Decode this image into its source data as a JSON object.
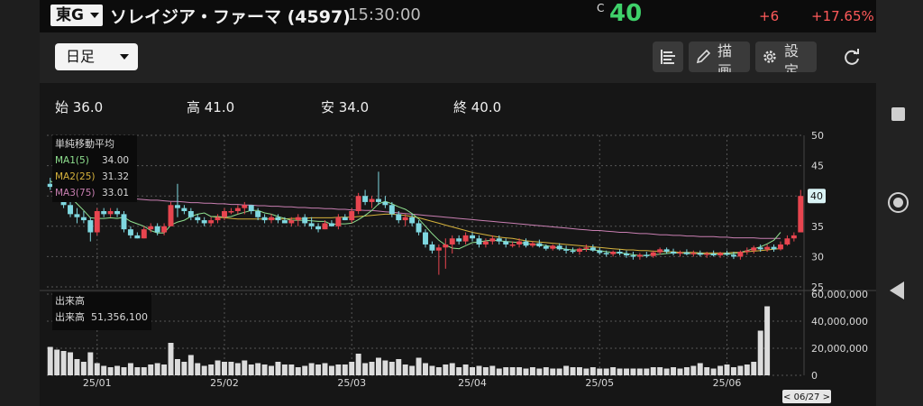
{
  "header": {
    "market": "東G",
    "stock_name": "ソレイジア・ファーマ (4597)",
    "time": "15:30:00",
    "price_marker": "C",
    "price": "40",
    "change": "+6",
    "change_pct": "+17.65%"
  },
  "toolbar": {
    "period": "日足",
    "draw_label": "描画",
    "settings_label": "設定"
  },
  "ohlc": {
    "open": "始 36.0",
    "high": "高 41.0",
    "low": "安 34.0",
    "close": "終 40.0"
  },
  "legend": {
    "title": "単純移動平均",
    "ma1_label": "MA1(5)",
    "ma1_value": "34.00",
    "ma2_label": "MA2(25)",
    "ma2_value": "31.32",
    "ma3_label": "MA3(75)",
    "ma3_value": "33.01"
  },
  "volume_legend": {
    "title": "出来高",
    "label": "出来高",
    "value": "51,356,100"
  },
  "colors": {
    "up": "#e8454f",
    "down": "#7fd8e0",
    "ma1": "#8fe08f",
    "ma2": "#d6b23c",
    "ma3": "#c97fb2",
    "price": "#3fd16a"
  },
  "icons": {
    "toolbar_1": "list-icon",
    "toolbar_2": "pencil-icon",
    "toolbar_3": "gear-icon",
    "toolbar_4": "refresh-icon"
  },
  "chart_data": {
    "type": "candlestick",
    "price_axis": {
      "ticks": [
        "50",
        "45",
        "40",
        "35",
        "30",
        "25"
      ],
      "ylim": [
        25,
        50
      ]
    },
    "volume_axis": {
      "ticks": [
        "60,000,000",
        "40,000,000",
        "20,000,000",
        "0"
      ],
      "ylim": [
        0,
        60000000
      ]
    },
    "x_labels": [
      "25/01",
      "25/02",
      "25/03",
      "25/04",
      "25/05",
      "25/06"
    ],
    "last_price_badge": "40",
    "cursor_date": "< 06/27 >",
    "x_tick_index": [
      7,
      26,
      45,
      63,
      82,
      101
    ],
    "candles": [
      [
        42,
        43,
        41,
        41.5
      ],
      [
        41.5,
        42,
        39.5,
        40
      ],
      [
        40,
        40.5,
        38,
        38.5
      ],
      [
        38.5,
        39,
        36.5,
        37
      ],
      [
        37,
        38,
        35.5,
        36.5
      ],
      [
        36.5,
        37.5,
        35.5,
        36
      ],
      [
        36,
        36.5,
        32.5,
        34
      ],
      [
        34,
        38,
        33.5,
        37.5
      ],
      [
        37.5,
        38,
        36.5,
        37
      ],
      [
        37,
        38,
        36.5,
        37.5
      ],
      [
        37.5,
        38,
        36.5,
        37
      ],
      [
        37,
        37.5,
        34,
        34.5
      ],
      [
        34.5,
        35,
        33,
        33.5
      ],
      [
        33.5,
        34,
        33,
        33
      ],
      [
        33,
        35,
        33,
        34.5
      ],
      [
        34.5,
        35.5,
        34,
        35
      ],
      [
        35,
        35.5,
        33.5,
        34
      ],
      [
        34,
        35.5,
        33.5,
        35
      ],
      [
        35,
        39,
        35,
        38.5
      ],
      [
        38.5,
        42,
        36.5,
        38
      ],
      [
        38,
        38.5,
        37,
        37.5
      ],
      [
        37.5,
        38,
        36,
        36.5
      ],
      [
        36.5,
        37,
        35.5,
        36
      ],
      [
        36,
        36.5,
        35,
        35.5
      ],
      [
        35.5,
        36.5,
        35,
        36
      ],
      [
        36,
        37,
        35.5,
        36.5
      ],
      [
        36.5,
        38,
        36,
        37.5
      ],
      [
        37.5,
        38,
        37,
        37.5
      ],
      [
        37.5,
        38.5,
        37,
        38
      ],
      [
        38,
        39,
        37,
        38.5
      ],
      [
        38.5,
        38.5,
        37,
        37.5
      ],
      [
        37.5,
        38,
        36,
        36.5
      ],
      [
        36.5,
        37,
        35.5,
        36
      ],
      [
        36,
        37,
        35.5,
        36.5
      ],
      [
        36.5,
        37,
        35.5,
        36
      ],
      [
        36,
        36.5,
        35.5,
        35.5
      ],
      [
        35.5,
        36.5,
        35,
        36
      ],
      [
        36,
        37,
        35,
        36.5
      ],
      [
        36.5,
        37,
        35,
        35.5
      ],
      [
        35.5,
        36.5,
        34.5,
        35
      ],
      [
        35,
        35.5,
        34,
        34.5
      ],
      [
        34.5,
        36,
        34.5,
        35.5
      ],
      [
        35.5,
        36,
        35,
        35
      ],
      [
        35,
        37,
        34.5,
        36.5
      ],
      [
        36.5,
        37,
        36,
        36
      ],
      [
        36,
        38,
        35.5,
        37.5
      ],
      [
        37.5,
        40.5,
        37,
        40
      ],
      [
        40,
        41,
        38.5,
        39
      ],
      [
        39,
        40,
        38,
        39.5
      ],
      [
        39.5,
        44,
        38.5,
        39
      ],
      [
        39,
        40,
        38,
        38.5
      ],
      [
        38.5,
        39,
        36.5,
        37
      ],
      [
        37,
        37.5,
        35.5,
        36
      ],
      [
        36,
        37,
        35,
        36.5
      ],
      [
        36.5,
        37,
        35,
        35.5
      ],
      [
        35.5,
        36,
        33.5,
        34
      ],
      [
        34,
        34.5,
        31.5,
        32
      ],
      [
        32,
        32.5,
        30.5,
        31
      ],
      [
        31,
        32,
        27,
        31.5
      ],
      [
        31.5,
        33,
        28,
        32
      ],
      [
        32,
        33.5,
        30.5,
        33
      ],
      [
        33,
        33.5,
        32,
        32.5
      ],
      [
        32.5,
        34,
        32,
        33.5
      ],
      [
        33.5,
        34,
        32.5,
        33
      ],
      [
        33,
        33.5,
        31.5,
        32
      ],
      [
        32,
        33,
        31.5,
        32.5
      ],
      [
        32.5,
        33.5,
        32,
        33
      ],
      [
        33,
        33.5,
        32,
        32.5
      ],
      [
        32.5,
        33,
        31.5,
        32
      ],
      [
        32,
        32.5,
        31.5,
        32
      ],
      [
        32,
        33,
        31.5,
        32.5
      ],
      [
        32.5,
        33,
        31.5,
        31.8
      ],
      [
        31.8,
        32.5,
        31.5,
        32.2
      ],
      [
        32.2,
        32.8,
        31.5,
        31.7
      ],
      [
        31.7,
        32,
        31,
        31.3
      ],
      [
        31.3,
        32,
        31,
        31.8
      ],
      [
        31.8,
        32.2,
        31,
        31.2
      ],
      [
        31.2,
        31.8,
        30.5,
        31
      ],
      [
        31,
        31.5,
        30.5,
        30.8
      ],
      [
        30.8,
        31.5,
        30.3,
        31.3
      ],
      [
        31.3,
        32,
        30.8,
        31.5
      ],
      [
        31.5,
        32,
        30.8,
        31
      ],
      [
        31,
        31.5,
        30.3,
        30.6
      ],
      [
        30.6,
        31,
        30,
        30.4
      ],
      [
        30.4,
        31,
        30,
        30.8
      ],
      [
        30.8,
        31.2,
        30.2,
        30.5
      ],
      [
        30.5,
        31,
        29.8,
        30.2
      ],
      [
        30.2,
        30.8,
        29.5,
        30
      ],
      [
        30,
        30.6,
        29.5,
        30.3
      ],
      [
        30.3,
        30.8,
        29.8,
        30.1
      ],
      [
        30.1,
        31,
        29.8,
        30.7
      ],
      [
        30.7,
        31.5,
        30.3,
        31.2
      ],
      [
        31.2,
        31.5,
        30.5,
        30.8
      ],
      [
        30.8,
        31.3,
        30.2,
        30.5
      ],
      [
        30.5,
        31,
        30,
        30.7
      ],
      [
        30.7,
        31.2,
        30.2,
        30.4
      ],
      [
        30.4,
        31,
        30,
        30.6
      ],
      [
        30.6,
        31,
        30,
        30.3
      ],
      [
        30.3,
        30.8,
        29.8,
        30.5
      ],
      [
        30.5,
        31,
        30,
        30.2
      ],
      [
        30.2,
        30.8,
        29.8,
        30.6
      ],
      [
        30.6,
        31,
        30.1,
        30.3
      ],
      [
        30.3,
        30.8,
        29.6,
        30
      ],
      [
        30,
        31,
        29.5,
        30.8
      ],
      [
        30.8,
        31.5,
        30.3,
        31
      ],
      [
        31,
        31.8,
        30.5,
        31.5
      ],
      [
        31.5,
        32,
        30.8,
        31.2
      ],
      [
        31.2,
        32,
        30.8,
        31.6
      ],
      [
        31.6,
        32,
        30.8,
        31.2
      ],
      [
        31.2,
        32.5,
        31,
        32
      ],
      [
        32,
        33.5,
        31.8,
        33
      ],
      [
        33,
        34,
        32.5,
        33.5
      ],
      [
        34,
        41,
        34,
        40
      ]
    ],
    "volumes": [
      21,
      19,
      18,
      17,
      12,
      10,
      17,
      9,
      7,
      6,
      7,
      6,
      9,
      6,
      6,
      8,
      9,
      8,
      24,
      12,
      10,
      15,
      9,
      7,
      8,
      11,
      10,
      10,
      9,
      11,
      8,
      9,
      8,
      7,
      10,
      8,
      8,
      6,
      7,
      9,
      8,
      9,
      7,
      8,
      8,
      10,
      16,
      9,
      10,
      13,
      11,
      10,
      12,
      8,
      7,
      13,
      9,
      7,
      6,
      8,
      9,
      6,
      8,
      6,
      7,
      6,
      7,
      5,
      6,
      6,
      6,
      5,
      6,
      5,
      6,
      5,
      5,
      7,
      6,
      6,
      5,
      6,
      5,
      5,
      6,
      5,
      5,
      5,
      5,
      5,
      6,
      6,
      5,
      6,
      5,
      6,
      7,
      9,
      6,
      5,
      7,
      8,
      6,
      7,
      8,
      10,
      33,
      51
    ],
    "ma1": [
      42.5,
      41.8,
      40.6,
      39.8,
      38.7,
      37.6,
      36.4,
      36.3,
      36.3,
      36.4,
      36.3,
      36.5,
      35.8,
      35.4,
      35,
      34.3,
      33.9,
      33.9,
      35.2,
      35.7,
      36,
      36.6,
      37,
      37.2,
      36.6,
      36.6,
      36.5,
      36.6,
      37,
      37.3,
      37.6,
      37.6,
      37.2,
      37,
      36.6,
      36.3,
      36,
      36,
      36,
      35.9,
      35.8,
      35.8,
      35.3,
      35.4,
      35.4,
      35.5,
      36.1,
      36.8,
      37.6,
      38.7,
      39.1,
      38.7,
      38.2,
      37.8,
      37.1,
      36.2,
      35,
      33.8,
      32.7,
      31.9,
      31.4,
      31.3,
      31.8,
      32.3,
      32.4,
      32.6,
      32.7,
      32.6,
      32.5,
      32.4,
      32.3,
      32.2,
      32,
      32,
      31.8,
      31.6,
      31.4,
      31.2,
      31.1,
      31.1,
      31.2,
      31.1,
      31,
      30.8,
      30.7,
      30.6,
      30.5,
      30.3,
      30.2,
      30.2,
      30.3,
      30.4,
      30.5,
      30.6,
      30.6,
      30.5,
      30.5,
      30.5,
      30.4,
      30.4,
      30.4,
      30.4,
      30.5,
      30.7,
      31,
      31.3,
      31.6,
      32.1,
      32.7,
      34
    ],
    "ma2": [
      null,
      null,
      null,
      null,
      null,
      null,
      null,
      null,
      null,
      null,
      null,
      null,
      null,
      null,
      null,
      null,
      null,
      null,
      null,
      null,
      null,
      null,
      null,
      null,
      36.6,
      36.5,
      36.4,
      36.3,
      36.2,
      36.2,
      36.2,
      36.2,
      36.2,
      36.2,
      36.2,
      36.2,
      36.3,
      36.3,
      36.3,
      36.4,
      36.4,
      36.4,
      36.4,
      36.5,
      36.5,
      36.5,
      36.6,
      36.7,
      36.8,
      36.9,
      37,
      37,
      36.9,
      36.8,
      36.6,
      36.4,
      36.1,
      35.8,
      35.5,
      35.2,
      34.9,
      34.6,
      34.3,
      34,
      33.8,
      33.6,
      33.4,
      33.2,
      33.1,
      33,
      32.8,
      32.6,
      32.5,
      32.4,
      32.3,
      32.2,
      32.1,
      32,
      31.9,
      31.8,
      31.7,
      31.6,
      31.5,
      31.4,
      31.3,
      31.2,
      31.1,
      31.1,
      31,
      31,
      30.9,
      30.9,
      30.8,
      30.8,
      30.7,
      30.7,
      30.7,
      30.6,
      30.6,
      30.6,
      30.6,
      30.6,
      30.7,
      30.7,
      30.8,
      30.9,
      31,
      31.1,
      31.2,
      31.32
    ],
    "ma3": [
      40.7,
      40.6,
      40.5,
      40.4,
      40.3,
      40.2,
      40.1,
      40,
      39.9,
      39.8,
      39.8,
      39.7,
      39.6,
      39.5,
      39.4,
      39.3,
      39.3,
      39.2,
      39.1,
      39.1,
      39,
      38.9,
      38.9,
      38.8,
      38.8,
      38.7,
      38.7,
      38.6,
      38.6,
      38.5,
      38.5,
      38.4,
      38.4,
      38.3,
      38.3,
      38.2,
      38.2,
      38.1,
      38.1,
      38,
      38,
      37.9,
      37.9,
      37.8,
      37.8,
      37.7,
      37.7,
      37.6,
      37.6,
      37.5,
      37.4,
      37.3,
      37.2,
      37.1,
      37,
      36.9,
      36.8,
      36.7,
      36.6,
      36.5,
      36.4,
      36.3,
      36.2,
      36.1,
      36,
      35.9,
      35.8,
      35.7,
      35.6,
      35.5,
      35.4,
      35.3,
      35.2,
      35.1,
      35,
      34.9,
      34.8,
      34.7,
      34.6,
      34.5,
      34.4,
      34.3,
      34.3,
      34.2,
      34.1,
      34,
      34,
      33.9,
      33.8,
      33.8,
      33.7,
      33.6,
      33.6,
      33.5,
      33.5,
      33.4,
      33.4,
      33.3,
      33.3,
      33.3,
      33.2,
      33.2,
      33.1,
      33.1,
      33.1,
      33.1,
      33,
      33,
      33,
      33.01
    ]
  }
}
